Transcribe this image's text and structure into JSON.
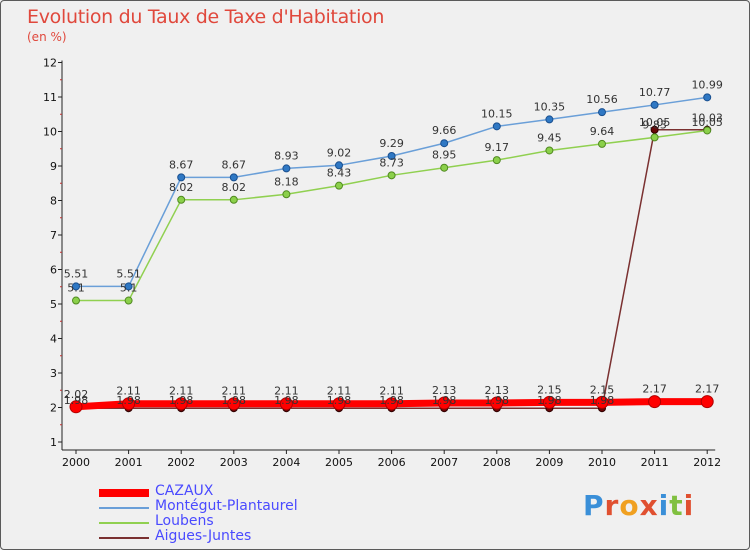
{
  "chart_data": {
    "type": "line",
    "title": "Evolution du Taux de Taxe d'Habitation",
    "subtitle": "(en %)",
    "x": [
      "2000",
      "2001",
      "2002",
      "2003",
      "2004",
      "2005",
      "2006",
      "2007",
      "2008",
      "2009",
      "2010",
      "2011",
      "2012"
    ],
    "ylim": [
      1,
      12
    ],
    "yticks": [
      1,
      2,
      3,
      4,
      5,
      6,
      7,
      8,
      9,
      10,
      11,
      12
    ],
    "grid": false,
    "legend_position": "bottom-left",
    "series": [
      {
        "name": "CAZAUX",
        "color": "#ff0000",
        "values": [
          2.02,
          2.11,
          2.11,
          2.11,
          2.11,
          2.11,
          2.11,
          2.13,
          2.13,
          2.15,
          2.15,
          2.17,
          2.17
        ],
        "labels": [
          "2.02",
          "2.11",
          "2.11",
          "2.11",
          "2.11",
          "2.11",
          "2.11",
          "2.13",
          "2.13",
          "2.15",
          "2.15",
          "2.17",
          "2.17"
        ]
      },
      {
        "name": "Montégut-Plantaurel",
        "color": "#6a9fd8",
        "values": [
          5.51,
          5.51,
          8.67,
          8.67,
          8.93,
          9.02,
          9.29,
          9.66,
          10.15,
          10.35,
          10.56,
          10.77,
          10.99
        ],
        "labels": [
          "5.51",
          "5.51",
          "8.67",
          "8.67",
          "8.93",
          "9.02",
          "9.29",
          "9.66",
          "10.15",
          "10.35",
          "10.56",
          "10.77",
          "10.99"
        ]
      },
      {
        "name": "Loubens",
        "color": "#90d050",
        "values": [
          5.1,
          5.1,
          8.02,
          8.02,
          8.18,
          8.43,
          8.73,
          8.95,
          9.17,
          9.45,
          9.64,
          9.83,
          10.03
        ],
        "labels": [
          "5.1",
          "5.1",
          "8.02",
          "8.02",
          "8.18",
          "8.43",
          "8.73",
          "8.95",
          "9.17",
          "9.45",
          "9.64",
          "9.83",
          "10.03"
        ]
      },
      {
        "name": "Aigues-Juntes",
        "color": "#7a3030",
        "values": [
          1.98,
          1.98,
          1.98,
          1.98,
          1.98,
          1.98,
          1.98,
          1.98,
          1.98,
          1.98,
          1.98,
          10.05,
          10.05
        ],
        "labels": [
          "1.98",
          "1.98",
          "1.98",
          "1.98",
          "1.98",
          "1.98",
          "1.98",
          "1.98",
          "1.98",
          "1.98",
          "1.98",
          "10.05",
          "10.05"
        ]
      }
    ]
  },
  "logo": {
    "text": "Proxiti",
    "letters": [
      {
        "ch": "P",
        "color": "#3a8fd8"
      },
      {
        "ch": "r",
        "color": "#e05030"
      },
      {
        "ch": "o",
        "color": "#f0a020"
      },
      {
        "ch": "x",
        "color": "#e05030"
      },
      {
        "ch": "i",
        "color": "#3a8fd8"
      },
      {
        "ch": "t",
        "color": "#80c040"
      },
      {
        "ch": "i",
        "color": "#e05030"
      }
    ]
  }
}
